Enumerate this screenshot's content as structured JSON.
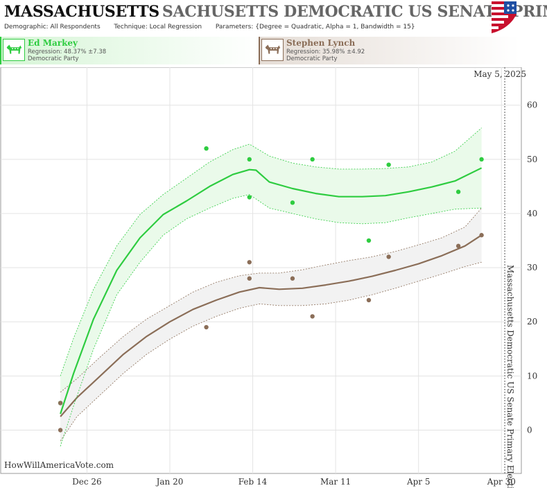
{
  "header": {
    "title_state": "MASSACHUSETTS",
    "title_race": "SACHUSETTS DEMOCRATIC US SENATE PRIM",
    "demographic_label": "Demographic:",
    "demographic_value": "All Respondents",
    "technique_label": "Technique:",
    "technique_value": "Local Regression",
    "parameters_label": "Parameters:",
    "parameters_value": "{Degree = Quadratic, Alpha = 1, Bandwidth = 15}"
  },
  "candidates": [
    {
      "name": "Ed Markey",
      "regression": "Regression: 48.37% ±7.38",
      "party": "Democratic Party",
      "color": "#2ecc40"
    },
    {
      "name": "Stephen Lynch",
      "regression": "Regression: 35.98% ±4.92",
      "party": "Democratic Party",
      "color": "#8b6e58"
    }
  ],
  "watermark": "HowWillAmericaVote.com",
  "chart_data": {
    "type": "scatter",
    "date_label": "May 5, 2025",
    "event_label": "Massachusetts Democratic US Senate Primary Election",
    "x_tick_labels": [
      "Dec 26",
      "Jan 20",
      "Feb 14",
      "Mar 11",
      "Apr 5",
      "Apr 30"
    ],
    "x_tick_dates": [
      "2024-12-26",
      "2025-01-20",
      "2025-02-14",
      "2025-03-11",
      "2025-04-05",
      "2025-04-30"
    ],
    "xlim": [
      "2024-11-30",
      "2025-05-06"
    ],
    "event_date": "2025-05-01",
    "ylim": [
      -8,
      67
    ],
    "y_ticks": [
      0,
      10,
      20,
      30,
      40,
      50,
      60
    ],
    "grid": true,
    "series": [
      {
        "name": "Ed Markey",
        "color": "#2ecc40",
        "band_fill": "#eafaea",
        "points": [
          {
            "x": "2024-12-18",
            "y": 5
          },
          {
            "x": "2025-01-31",
            "y": 52
          },
          {
            "x": "2025-02-13",
            "y": 50
          },
          {
            "x": "2025-02-13",
            "y": 43
          },
          {
            "x": "2025-02-26",
            "y": 42
          },
          {
            "x": "2025-03-04",
            "y": 50
          },
          {
            "x": "2025-03-21",
            "y": 35
          },
          {
            "x": "2025-03-27",
            "y": 49
          },
          {
            "x": "2025-04-17",
            "y": 44
          },
          {
            "x": "2025-04-24",
            "y": 50
          }
        ],
        "trend": [
          {
            "x": "2024-12-18",
            "y": 3.0
          },
          {
            "x": "2024-12-22",
            "y": 10.5
          },
          {
            "x": "2024-12-28",
            "y": 20.5
          },
          {
            "x": "2025-01-04",
            "y": 29.5
          },
          {
            "x": "2025-01-11",
            "y": 35.5
          },
          {
            "x": "2025-01-18",
            "y": 39.8
          },
          {
            "x": "2025-01-25",
            "y": 42.3
          },
          {
            "x": "2025-02-01",
            "y": 45.0
          },
          {
            "x": "2025-02-08",
            "y": 47.2
          },
          {
            "x": "2025-02-13",
            "y": 48.1
          },
          {
            "x": "2025-02-15",
            "y": 48.0
          },
          {
            "x": "2025-02-19",
            "y": 45.8
          },
          {
            "x": "2025-02-26",
            "y": 44.6
          },
          {
            "x": "2025-03-05",
            "y": 43.7
          },
          {
            "x": "2025-03-12",
            "y": 43.1
          },
          {
            "x": "2025-03-19",
            "y": 43.1
          },
          {
            "x": "2025-03-26",
            "y": 43.3
          },
          {
            "x": "2025-04-02",
            "y": 44.0
          },
          {
            "x": "2025-04-09",
            "y": 44.9
          },
          {
            "x": "2025-04-16",
            "y": 46.0
          },
          {
            "x": "2025-04-24",
            "y": 48.4
          }
        ],
        "upper": [
          {
            "x": "2024-12-18",
            "y": 10.0
          },
          {
            "x": "2024-12-22",
            "y": 17.0
          },
          {
            "x": "2024-12-28",
            "y": 26.0
          },
          {
            "x": "2025-01-04",
            "y": 34.0
          },
          {
            "x": "2025-01-11",
            "y": 39.8
          },
          {
            "x": "2025-01-18",
            "y": 43.5
          },
          {
            "x": "2025-01-25",
            "y": 46.5
          },
          {
            "x": "2025-02-01",
            "y": 49.5
          },
          {
            "x": "2025-02-08",
            "y": 51.8
          },
          {
            "x": "2025-02-13",
            "y": 52.8
          },
          {
            "x": "2025-02-19",
            "y": 50.6
          },
          {
            "x": "2025-02-26",
            "y": 49.3
          },
          {
            "x": "2025-03-05",
            "y": 48.6
          },
          {
            "x": "2025-03-12",
            "y": 48.2
          },
          {
            "x": "2025-03-19",
            "y": 48.2
          },
          {
            "x": "2025-03-26",
            "y": 48.3
          },
          {
            "x": "2025-04-02",
            "y": 48.6
          },
          {
            "x": "2025-04-09",
            "y": 49.5
          },
          {
            "x": "2025-04-16",
            "y": 51.5
          },
          {
            "x": "2025-04-24",
            "y": 55.8
          }
        ],
        "lower": [
          {
            "x": "2024-12-18",
            "y": -3.0
          },
          {
            "x": "2024-12-22",
            "y": 4.5
          },
          {
            "x": "2024-12-28",
            "y": 15.0
          },
          {
            "x": "2025-01-04",
            "y": 25.0
          },
          {
            "x": "2025-01-11",
            "y": 31.0
          },
          {
            "x": "2025-01-18",
            "y": 36.0
          },
          {
            "x": "2025-01-25",
            "y": 39.0
          },
          {
            "x": "2025-02-01",
            "y": 41.0
          },
          {
            "x": "2025-02-08",
            "y": 42.8
          },
          {
            "x": "2025-02-13",
            "y": 43.5
          },
          {
            "x": "2025-02-19",
            "y": 41.0
          },
          {
            "x": "2025-02-26",
            "y": 40.0
          },
          {
            "x": "2025-03-05",
            "y": 39.0
          },
          {
            "x": "2025-03-12",
            "y": 38.3
          },
          {
            "x": "2025-03-19",
            "y": 38.1
          },
          {
            "x": "2025-03-26",
            "y": 38.3
          },
          {
            "x": "2025-04-02",
            "y": 39.2
          },
          {
            "x": "2025-04-09",
            "y": 40.0
          },
          {
            "x": "2025-04-16",
            "y": 40.8
          },
          {
            "x": "2025-04-24",
            "y": 41.0
          }
        ]
      },
      {
        "name": "Stephen Lynch",
        "color": "#8b6e58",
        "band_fill": "#f2f2f2",
        "points": [
          {
            "x": "2024-12-18",
            "y": 5
          },
          {
            "x": "2024-12-18",
            "y": 0
          },
          {
            "x": "2025-01-31",
            "y": 19
          },
          {
            "x": "2025-02-13",
            "y": 31
          },
          {
            "x": "2025-02-13",
            "y": 28
          },
          {
            "x": "2025-02-26",
            "y": 28
          },
          {
            "x": "2025-03-04",
            "y": 21
          },
          {
            "x": "2025-03-21",
            "y": 24
          },
          {
            "x": "2025-03-27",
            "y": 32
          },
          {
            "x": "2025-04-17",
            "y": 34
          },
          {
            "x": "2025-04-24",
            "y": 36
          }
        ],
        "trend": [
          {
            "x": "2024-12-18",
            "y": 2.5
          },
          {
            "x": "2024-12-23",
            "y": 6.0
          },
          {
            "x": "2024-12-30",
            "y": 10.0
          },
          {
            "x": "2025-01-06",
            "y": 14.0
          },
          {
            "x": "2025-01-13",
            "y": 17.3
          },
          {
            "x": "2025-01-20",
            "y": 20.0
          },
          {
            "x": "2025-01-27",
            "y": 22.3
          },
          {
            "x": "2025-02-03",
            "y": 24.0
          },
          {
            "x": "2025-02-10",
            "y": 25.5
          },
          {
            "x": "2025-02-16",
            "y": 26.3
          },
          {
            "x": "2025-02-22",
            "y": 26.0
          },
          {
            "x": "2025-03-01",
            "y": 26.2
          },
          {
            "x": "2025-03-08",
            "y": 26.8
          },
          {
            "x": "2025-03-15",
            "y": 27.5
          },
          {
            "x": "2025-03-22",
            "y": 28.4
          },
          {
            "x": "2025-03-29",
            "y": 29.5
          },
          {
            "x": "2025-04-05",
            "y": 30.7
          },
          {
            "x": "2025-04-12",
            "y": 32.2
          },
          {
            "x": "2025-04-19",
            "y": 34.0
          },
          {
            "x": "2025-04-24",
            "y": 36.0
          }
        ],
        "upper": [
          {
            "x": "2024-12-18",
            "y": 7.0
          },
          {
            "x": "2024-12-23",
            "y": 9.5
          },
          {
            "x": "2024-12-30",
            "y": 13.5
          },
          {
            "x": "2025-01-06",
            "y": 17.3
          },
          {
            "x": "2025-01-13",
            "y": 20.5
          },
          {
            "x": "2025-01-20",
            "y": 23.0
          },
          {
            "x": "2025-01-27",
            "y": 25.5
          },
          {
            "x": "2025-02-03",
            "y": 27.3
          },
          {
            "x": "2025-02-10",
            "y": 28.5
          },
          {
            "x": "2025-02-16",
            "y": 29.0
          },
          {
            "x": "2025-02-22",
            "y": 29.0
          },
          {
            "x": "2025-03-01",
            "y": 29.6
          },
          {
            "x": "2025-03-08",
            "y": 30.5
          },
          {
            "x": "2025-03-15",
            "y": 31.3
          },
          {
            "x": "2025-03-22",
            "y": 32.0
          },
          {
            "x": "2025-03-29",
            "y": 33.0
          },
          {
            "x": "2025-04-05",
            "y": 34.2
          },
          {
            "x": "2025-04-12",
            "y": 35.5
          },
          {
            "x": "2025-04-19",
            "y": 37.5
          },
          {
            "x": "2025-04-24",
            "y": 41.0
          }
        ],
        "lower": [
          {
            "x": "2024-12-18",
            "y": -2.0
          },
          {
            "x": "2024-12-23",
            "y": 2.5
          },
          {
            "x": "2024-12-30",
            "y": 6.5
          },
          {
            "x": "2025-01-06",
            "y": 10.5
          },
          {
            "x": "2025-01-13",
            "y": 14.0
          },
          {
            "x": "2025-01-20",
            "y": 16.8
          },
          {
            "x": "2025-01-27",
            "y": 19.2
          },
          {
            "x": "2025-02-03",
            "y": 21.0
          },
          {
            "x": "2025-02-10",
            "y": 22.5
          },
          {
            "x": "2025-02-16",
            "y": 23.3
          },
          {
            "x": "2025-02-22",
            "y": 23.0
          },
          {
            "x": "2025-03-01",
            "y": 23.0
          },
          {
            "x": "2025-03-08",
            "y": 23.3
          },
          {
            "x": "2025-03-15",
            "y": 24.0
          },
          {
            "x": "2025-03-22",
            "y": 25.0
          },
          {
            "x": "2025-03-29",
            "y": 26.2
          },
          {
            "x": "2025-04-05",
            "y": 27.5
          },
          {
            "x": "2025-04-12",
            "y": 28.8
          },
          {
            "x": "2025-04-19",
            "y": 30.2
          },
          {
            "x": "2025-04-24",
            "y": 31.0
          }
        ]
      }
    ]
  }
}
